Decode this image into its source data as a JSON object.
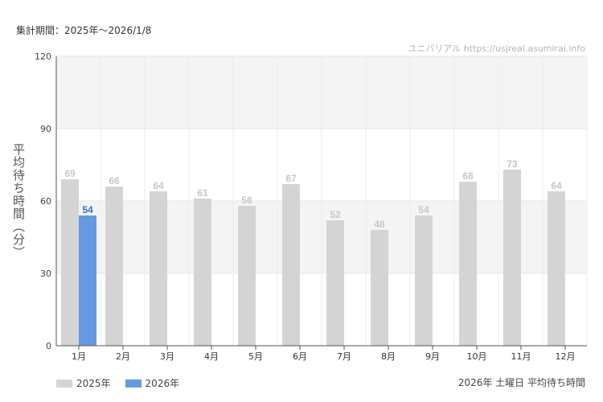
{
  "header": {
    "period_label": "集計期間：2025年～2026/1/8",
    "watermark": "ユニバリアル  https://usjreal.asumirai.info"
  },
  "footer": {
    "caption": "2026年 土曜日 平均待ち時間"
  },
  "chart_data": {
    "type": "bar",
    "title": "",
    "xlabel": "",
    "ylabel": "平均待ち時間（分）",
    "ylim": [
      0,
      120
    ],
    "yticks": [
      0,
      30,
      60,
      90,
      120
    ],
    "grid": true,
    "legend_position": "bottom-left",
    "categories": [
      "1月",
      "2月",
      "3月",
      "4月",
      "5月",
      "6月",
      "7月",
      "8月",
      "9月",
      "10月",
      "11月",
      "12月"
    ],
    "series": [
      {
        "name": "2025年",
        "color": "#d4d4d4",
        "label_color": "#c6c6c6",
        "values": [
          69,
          66,
          64,
          61,
          58,
          67,
          52,
          48,
          54,
          68,
          73,
          64
        ]
      },
      {
        "name": "2026年",
        "color": "#6699e3",
        "label_color": "#2f6fd6",
        "values": [
          54,
          null,
          null,
          null,
          null,
          null,
          null,
          null,
          null,
          null,
          null,
          null
        ]
      }
    ]
  }
}
